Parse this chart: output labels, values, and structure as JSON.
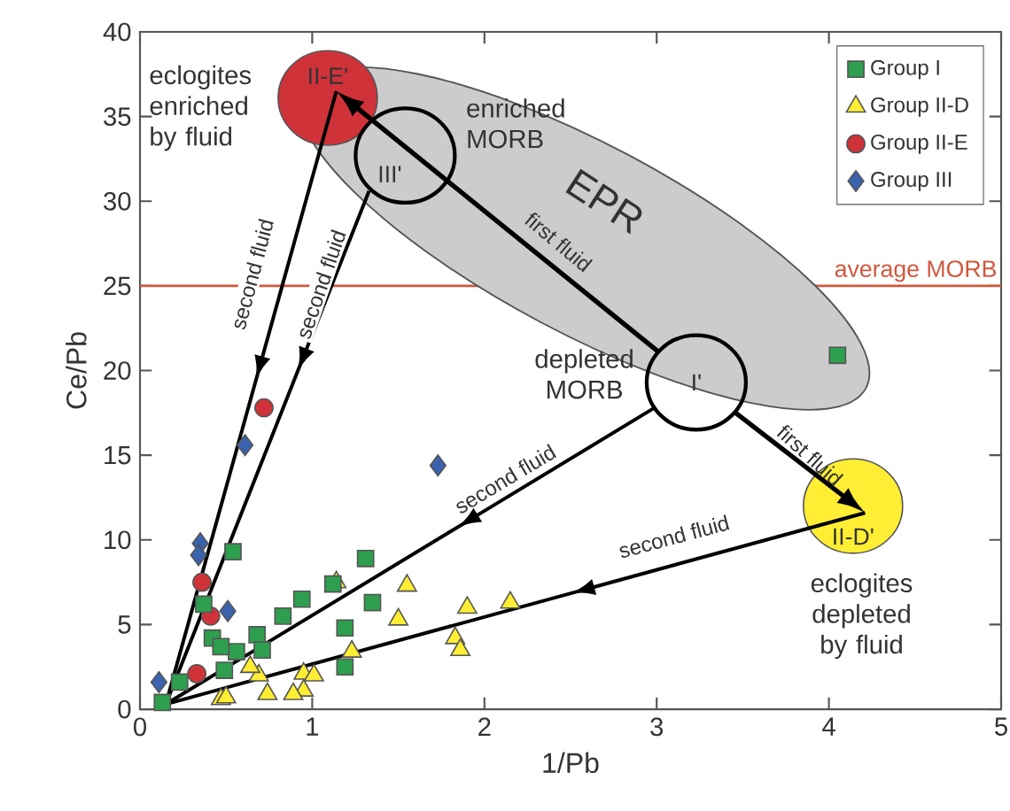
{
  "chart_data": {
    "type": "scatter",
    "xlabel": "1/Pb",
    "ylabel": "Ce/Pb",
    "xlim": [
      0,
      5
    ],
    "ylim": [
      0,
      40
    ],
    "xticks": [
      0,
      1,
      2,
      3,
      4,
      5
    ],
    "yticks": [
      0,
      5,
      10,
      15,
      20,
      25,
      30,
      35,
      40
    ],
    "legend": "top right",
    "series": [
      {
        "name": "Group I",
        "color": "#2e9e4f",
        "marker": "square",
        "x": [
          0.54,
          1.31,
          1.12,
          0.94,
          1.35,
          0.83,
          0.68,
          1.19,
          0.71,
          0.56,
          0.42,
          0.47,
          0.49,
          1.19,
          0.23,
          0.13,
          0.37,
          4.05
        ],
        "values": [
          9.3,
          8.9,
          7.4,
          6.5,
          6.3,
          5.5,
          4.4,
          4.8,
          3.5,
          3.4,
          4.2,
          3.7,
          2.3,
          2.5,
          1.6,
          0.4,
          6.2,
          20.9
        ]
      },
      {
        "name": "Group II-D",
        "color": "#ffee33",
        "marker": "triangle",
        "x": [
          1.14,
          1.55,
          1.5,
          1.9,
          2.15,
          1.83,
          1.86,
          1.23,
          0.95,
          1.01,
          0.95,
          0.69,
          0.64,
          0.74,
          0.47,
          0.5,
          0.89
        ],
        "values": [
          7.5,
          7.3,
          5.3,
          6.0,
          6.3,
          4.2,
          3.5,
          3.4,
          2.1,
          2.0,
          1.1,
          2.0,
          2.5,
          0.9,
          0.6,
          0.7,
          0.9
        ]
      },
      {
        "name": "Group II-E",
        "color": "#d0323a",
        "marker": "circle",
        "x": [
          0.36,
          0.41,
          0.33,
          0.72
        ],
        "values": [
          7.5,
          5.5,
          2.1,
          17.8
        ]
      },
      {
        "name": "Group III",
        "color": "#3a62ad",
        "marker": "diamond",
        "x": [
          0.35,
          0.34,
          0.51,
          0.11,
          1.73,
          0.61
        ],
        "values": [
          9.8,
          9.1,
          5.8,
          1.6,
          14.4,
          15.6
        ]
      }
    ],
    "ref_lines": [
      {
        "axis": "y",
        "value": 25,
        "label": "average MORB",
        "color": "#d0583d"
      }
    ],
    "annotations": [
      "eclogites enriched by fluid",
      "II-E'",
      "enriched MORB",
      "III'",
      "EPR",
      "first fluid",
      "depleted MORB",
      "I'",
      "first fluid",
      "II-D'",
      "eclogites depleted by fluid",
      "second fluid",
      "second fluid",
      "second fluid",
      "second fluid"
    ]
  }
}
